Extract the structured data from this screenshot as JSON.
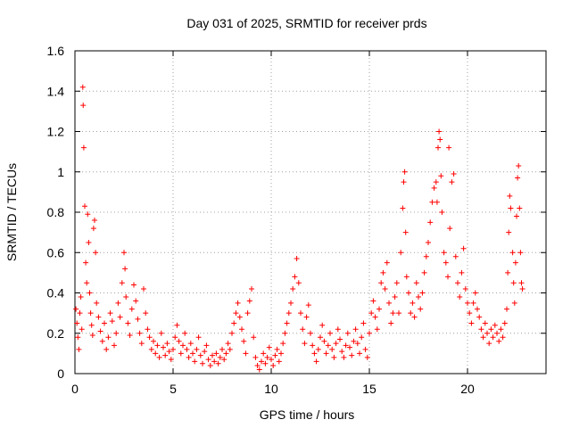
{
  "chart_data": {
    "type": "scatter",
    "title": "Day 031 of 2025, SRMTID for receiver prds",
    "xlabel": "GPS time / hours",
    "ylabel": "SRMTID / TECUs",
    "xlim": [
      0,
      24
    ],
    "ylim": [
      0,
      1.6
    ],
    "xticks": [
      0,
      5,
      10,
      15,
      20
    ],
    "xtick_labels": [
      "0",
      "5",
      "10",
      "15",
      "20"
    ],
    "yticks": [
      0,
      0.2,
      0.4,
      0.6,
      0.8,
      1.0,
      1.2,
      1.4,
      1.6
    ],
    "ytick_labels": [
      "0",
      "0.2",
      "0.4",
      "0.6",
      "0.8",
      "1",
      "1.2",
      "1.4",
      "1.6"
    ],
    "grid": true,
    "marker": "+",
    "color": "#ff0000",
    "series": [
      {
        "name": "SRMTID",
        "points": [
          [
            0.05,
            0.32
          ],
          [
            0.1,
            0.25
          ],
          [
            0.15,
            0.18
          ],
          [
            0.2,
            0.12
          ],
          [
            0.25,
            0.3
          ],
          [
            0.3,
            0.38
          ],
          [
            0.35,
            0.22
          ],
          [
            0.4,
            1.42
          ],
          [
            0.42,
            1.33
          ],
          [
            0.45,
            1.12
          ],
          [
            0.5,
            0.83
          ],
          [
            0.55,
            0.55
          ],
          [
            0.6,
            0.45
          ],
          [
            0.65,
            0.79
          ],
          [
            0.7,
            0.65
          ],
          [
            0.75,
            0.4
          ],
          [
            0.8,
            0.3
          ],
          [
            0.85,
            0.24
          ],
          [
            0.9,
            0.19
          ],
          [
            0.95,
            0.72
          ],
          [
            1.0,
            0.76
          ],
          [
            1.05,
            0.6
          ],
          [
            1.1,
            0.35
          ],
          [
            1.2,
            0.28
          ],
          [
            1.3,
            0.21
          ],
          [
            1.4,
            0.16
          ],
          [
            1.5,
            0.25
          ],
          [
            1.6,
            0.12
          ],
          [
            1.7,
            0.18
          ],
          [
            1.8,
            0.3
          ],
          [
            1.9,
            0.26
          ],
          [
            2.0,
            0.14
          ],
          [
            2.1,
            0.2
          ],
          [
            2.2,
            0.35
          ],
          [
            2.3,
            0.28
          ],
          [
            2.4,
            0.45
          ],
          [
            2.5,
            0.6
          ],
          [
            2.55,
            0.52
          ],
          [
            2.6,
            0.38
          ],
          [
            2.7,
            0.25
          ],
          [
            2.8,
            0.19
          ],
          [
            2.9,
            0.32
          ],
          [
            3.0,
            0.44
          ],
          [
            3.1,
            0.36
          ],
          [
            3.2,
            0.27
          ],
          [
            3.3,
            0.2
          ],
          [
            3.4,
            0.15
          ],
          [
            3.5,
            0.42
          ],
          [
            3.6,
            0.3
          ],
          [
            3.7,
            0.22
          ],
          [
            3.8,
            0.18
          ],
          [
            3.9,
            0.12
          ],
          [
            4.0,
            0.16
          ],
          [
            4.1,
            0.1
          ],
          [
            4.2,
            0.14
          ],
          [
            4.3,
            0.08
          ],
          [
            4.4,
            0.2
          ],
          [
            4.5,
            0.13
          ],
          [
            4.6,
            0.09
          ],
          [
            4.7,
            0.15
          ],
          [
            4.8,
            0.11
          ],
          [
            4.9,
            0.07
          ],
          [
            5.0,
            0.12
          ],
          [
            5.1,
            0.18
          ],
          [
            5.2,
            0.24
          ],
          [
            5.3,
            0.16
          ],
          [
            5.4,
            0.1
          ],
          [
            5.5,
            0.14
          ],
          [
            5.6,
            0.2
          ],
          [
            5.7,
            0.12
          ],
          [
            5.8,
            0.08
          ],
          [
            5.9,
            0.15
          ],
          [
            6.0,
            0.1
          ],
          [
            6.1,
            0.06
          ],
          [
            6.2,
            0.12
          ],
          [
            6.3,
            0.18
          ],
          [
            6.4,
            0.09
          ],
          [
            6.5,
            0.05
          ],
          [
            6.6,
            0.11
          ],
          [
            6.7,
            0.14
          ],
          [
            6.8,
            0.07
          ],
          [
            6.9,
            0.04
          ],
          [
            7.0,
            0.09
          ],
          [
            7.1,
            0.06
          ],
          [
            7.2,
            0.1
          ],
          [
            7.3,
            0.05
          ],
          [
            7.4,
            0.08
          ],
          [
            7.5,
            0.12
          ],
          [
            7.6,
            0.07
          ],
          [
            7.7,
            0.1
          ],
          [
            7.8,
            0.15
          ],
          [
            7.9,
            0.12
          ],
          [
            8.0,
            0.2
          ],
          [
            8.1,
            0.25
          ],
          [
            8.2,
            0.3
          ],
          [
            8.3,
            0.35
          ],
          [
            8.4,
            0.28
          ],
          [
            8.5,
            0.22
          ],
          [
            8.6,
            0.16
          ],
          [
            8.7,
            0.1
          ],
          [
            8.8,
            0.3
          ],
          [
            8.9,
            0.36
          ],
          [
            9.0,
            0.42
          ],
          [
            9.1,
            0.18
          ],
          [
            9.2,
            0.08
          ],
          [
            9.3,
            0.04
          ],
          [
            9.4,
            0.02
          ],
          [
            9.5,
            0.06
          ],
          [
            9.6,
            0.1
          ],
          [
            9.7,
            0.05
          ],
          [
            9.8,
            0.08
          ],
          [
            9.9,
            0.13
          ],
          [
            10.0,
            0.07
          ],
          [
            10.1,
            0.04
          ],
          [
            10.2,
            0.09
          ],
          [
            10.3,
            0.12
          ],
          [
            10.4,
            0.06
          ],
          [
            10.5,
            0.1
          ],
          [
            10.6,
            0.15
          ],
          [
            10.7,
            0.2
          ],
          [
            10.8,
            0.25
          ],
          [
            10.9,
            0.3
          ],
          [
            11.0,
            0.35
          ],
          [
            11.1,
            0.42
          ],
          [
            11.2,
            0.48
          ],
          [
            11.3,
            0.57
          ],
          [
            11.4,
            0.45
          ],
          [
            11.5,
            0.3
          ],
          [
            11.6,
            0.22
          ],
          [
            11.7,
            0.15
          ],
          [
            11.8,
            0.28
          ],
          [
            11.9,
            0.34
          ],
          [
            12.0,
            0.2
          ],
          [
            12.1,
            0.14
          ],
          [
            12.2,
            0.1
          ],
          [
            12.3,
            0.06
          ],
          [
            12.4,
            0.12
          ],
          [
            12.5,
            0.18
          ],
          [
            12.6,
            0.24
          ],
          [
            12.7,
            0.16
          ],
          [
            12.8,
            0.1
          ],
          [
            12.9,
            0.14
          ],
          [
            13.0,
            0.2
          ],
          [
            13.1,
            0.12
          ],
          [
            13.2,
            0.08
          ],
          [
            13.3,
            0.15
          ],
          [
            13.4,
            0.22
          ],
          [
            13.5,
            0.17
          ],
          [
            13.6,
            0.11
          ],
          [
            13.7,
            0.08
          ],
          [
            13.8,
            0.14
          ],
          [
            13.9,
            0.2
          ],
          [
            14.0,
            0.13
          ],
          [
            14.1,
            0.09
          ],
          [
            14.2,
            0.16
          ],
          [
            14.3,
            0.22
          ],
          [
            14.4,
            0.15
          ],
          [
            14.5,
            0.1
          ],
          [
            14.6,
            0.18
          ],
          [
            14.7,
            0.25
          ],
          [
            14.8,
            0.12
          ],
          [
            14.9,
            0.08
          ],
          [
            15.0,
            0.2
          ],
          [
            15.1,
            0.3
          ],
          [
            15.2,
            0.36
          ],
          [
            15.3,
            0.28
          ],
          [
            15.4,
            0.22
          ],
          [
            15.5,
            0.32
          ],
          [
            15.6,
            0.45
          ],
          [
            15.7,
            0.5
          ],
          [
            15.8,
            0.42
          ],
          [
            15.9,
            0.55
          ],
          [
            16.0,
            0.35
          ],
          [
            16.1,
            0.25
          ],
          [
            16.2,
            0.3
          ],
          [
            16.3,
            0.38
          ],
          [
            16.4,
            0.45
          ],
          [
            16.5,
            0.3
          ],
          [
            16.6,
            0.6
          ],
          [
            16.7,
            0.82
          ],
          [
            16.75,
            0.95
          ],
          [
            16.8,
            1.0
          ],
          [
            16.85,
            0.7
          ],
          [
            16.9,
            0.48
          ],
          [
            17.0,
            0.4
          ],
          [
            17.1,
            0.3
          ],
          [
            17.2,
            0.35
          ],
          [
            17.3,
            0.28
          ],
          [
            17.4,
            0.45
          ],
          [
            17.5,
            0.38
          ],
          [
            17.6,
            0.32
          ],
          [
            17.7,
            0.4
          ],
          [
            17.8,
            0.5
          ],
          [
            17.9,
            0.58
          ],
          [
            18.0,
            0.65
          ],
          [
            18.1,
            0.75
          ],
          [
            18.2,
            0.85
          ],
          [
            18.3,
            0.92
          ],
          [
            18.4,
            0.95
          ],
          [
            18.45,
            0.85
          ],
          [
            18.5,
            1.12
          ],
          [
            18.55,
            1.2
          ],
          [
            18.6,
            1.16
          ],
          [
            18.65,
            0.98
          ],
          [
            18.7,
            0.8
          ],
          [
            18.8,
            0.6
          ],
          [
            18.9,
            0.55
          ],
          [
            19.0,
            0.48
          ],
          [
            19.05,
            1.12
          ],
          [
            19.1,
            0.72
          ],
          [
            19.2,
            0.95
          ],
          [
            19.3,
            0.99
          ],
          [
            19.4,
            0.58
          ],
          [
            19.5,
            0.45
          ],
          [
            19.6,
            0.38
          ],
          [
            19.7,
            0.5
          ],
          [
            19.8,
            0.62
          ],
          [
            19.9,
            0.42
          ],
          [
            20.0,
            0.35
          ],
          [
            20.1,
            0.3
          ],
          [
            20.2,
            0.25
          ],
          [
            20.3,
            0.35
          ],
          [
            20.4,
            0.4
          ],
          [
            20.5,
            0.32
          ],
          [
            20.6,
            0.28
          ],
          [
            20.7,
            0.22
          ],
          [
            20.8,
            0.18
          ],
          [
            20.9,
            0.25
          ],
          [
            21.0,
            0.2
          ],
          [
            21.1,
            0.15
          ],
          [
            21.2,
            0.22
          ],
          [
            21.3,
            0.18
          ],
          [
            21.4,
            0.24
          ],
          [
            21.5,
            0.2
          ],
          [
            21.6,
            0.16
          ],
          [
            21.7,
            0.22
          ],
          [
            21.8,
            0.18
          ],
          [
            21.9,
            0.25
          ],
          [
            22.0,
            0.32
          ],
          [
            22.05,
            0.5
          ],
          [
            22.1,
            0.7
          ],
          [
            22.15,
            0.88
          ],
          [
            22.2,
            0.82
          ],
          [
            22.3,
            0.6
          ],
          [
            22.35,
            0.45
          ],
          [
            22.4,
            0.35
          ],
          [
            22.45,
            0.55
          ],
          [
            22.5,
            0.78
          ],
          [
            22.55,
            0.97
          ],
          [
            22.6,
            1.03
          ],
          [
            22.65,
            0.82
          ],
          [
            22.7,
            0.6
          ],
          [
            22.75,
            0.45
          ],
          [
            22.8,
            0.42
          ]
        ]
      }
    ]
  }
}
